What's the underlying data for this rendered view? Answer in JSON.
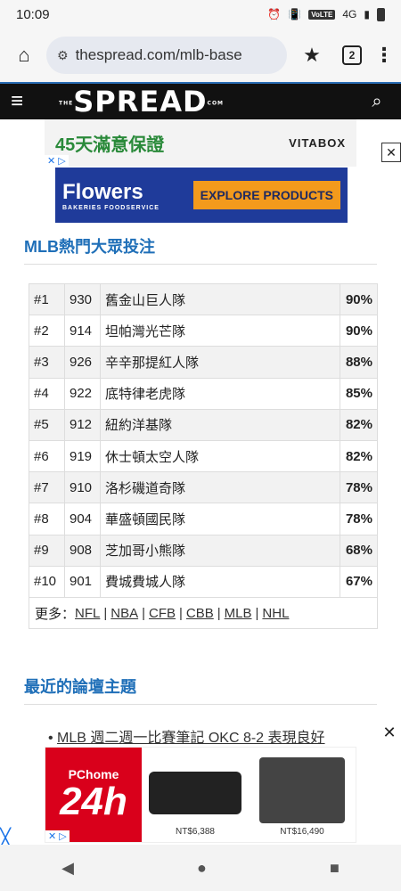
{
  "status": {
    "time": "10:09",
    "network": "VoLTE",
    "signal": "4G"
  },
  "browser": {
    "url": "thespread.com/mlb-base",
    "tab_count": "2"
  },
  "site": {
    "logo": "SPREAD",
    "logo_prefix": "THE",
    "logo_suffix": "COM"
  },
  "ads": {
    "top": {
      "slogan": "45天滿意保證",
      "brand": "VITABOX"
    },
    "banner": {
      "brand": "Flowers",
      "sub": "BAKERIES FOODSERVICE",
      "cta": "EXPLORE PRODUCTS"
    },
    "bottom": {
      "brand_top": "PChome",
      "brand_big": "24h",
      "price1": "NT$6,388",
      "price2": "NT$16,490"
    }
  },
  "mlb_section": {
    "title": "MLB熱門大眾投注"
  },
  "rank_rows": [
    {
      "rank": "#1",
      "code": "930",
      "team": "舊金山巨人隊",
      "pct": "90%"
    },
    {
      "rank": "#2",
      "code": "914",
      "team": "坦帕灣光芒隊",
      "pct": "90%"
    },
    {
      "rank": "#3",
      "code": "926",
      "team": "辛辛那提紅人隊",
      "pct": "88%"
    },
    {
      "rank": "#4",
      "code": "922",
      "team": "底特律老虎隊",
      "pct": "85%"
    },
    {
      "rank": "#5",
      "code": "912",
      "team": "紐約洋基隊",
      "pct": "82%"
    },
    {
      "rank": "#6",
      "code": "919",
      "team": "休士頓太空人隊",
      "pct": "82%"
    },
    {
      "rank": "#7",
      "code": "910",
      "team": "洛杉磯道奇隊",
      "pct": "78%"
    },
    {
      "rank": "#8",
      "code": "904",
      "team": "華盛頓國民隊",
      "pct": "78%"
    },
    {
      "rank": "#9",
      "code": "908",
      "team": "芝加哥小熊隊",
      "pct": "68%"
    },
    {
      "rank": "#10",
      "code": "901",
      "team": "費城費城人隊",
      "pct": "67%"
    }
  ],
  "more": {
    "label": "更多：",
    "links": [
      "NFL",
      "NBA",
      "CFB",
      "CBB",
      "MLB",
      "NHL"
    ]
  },
  "forum_section": {
    "title": "最近的論壇主題"
  },
  "topics": [
    "MLB 週二週一比賽筆記 OKC 8-2 表現良好"
  ]
}
